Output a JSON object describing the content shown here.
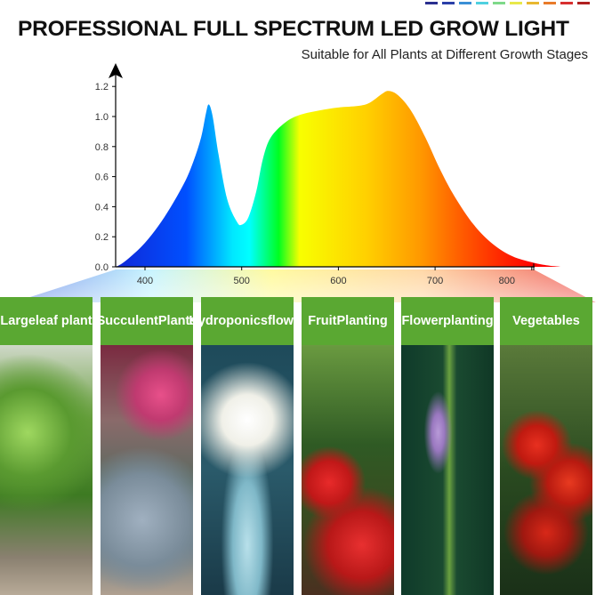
{
  "header": {
    "title": "PROFESSIONAL FULL SPECTRUM LED GROW LIGHT",
    "subtitle": "Suitable for All Plants at Different Growth Stages",
    "color_bars": [
      "#2a2f8f",
      "#2b3fa8",
      "#3a8fd6",
      "#4fd0e0",
      "#7ed98a",
      "#e8e84a",
      "#e8b830",
      "#e87b2a",
      "#d83030",
      "#b02020"
    ]
  },
  "chart_data": {
    "type": "area",
    "title": "",
    "xlabel": "",
    "ylabel": "",
    "xlim": [
      370,
      830
    ],
    "ylim": [
      0,
      1.25
    ],
    "x_ticks": [
      400,
      500,
      600,
      700,
      800
    ],
    "y_ticks": [
      "0.0",
      "0.2",
      "0.4",
      "0.6",
      "0.8",
      "1.0",
      "1.2"
    ],
    "grid": false,
    "fill": "spectrum gradient blue-cyan-green-yellow-orange-red",
    "x": [
      370,
      380,
      400,
      420,
      440,
      450,
      458,
      463,
      466,
      470,
      476,
      485,
      495,
      500,
      507,
      515,
      522,
      530,
      545,
      560,
      580,
      600,
      620,
      632,
      645,
      652,
      662,
      675,
      690,
      705,
      720,
      740,
      760,
      780,
      800,
      815,
      830
    ],
    "y": [
      0,
      0.04,
      0.16,
      0.33,
      0.55,
      0.7,
      0.86,
      1.02,
      1.08,
      1.0,
      0.75,
      0.45,
      0.3,
      0.28,
      0.33,
      0.5,
      0.72,
      0.86,
      0.96,
      1.01,
      1.04,
      1.06,
      1.07,
      1.09,
      1.15,
      1.17,
      1.14,
      1.04,
      0.86,
      0.65,
      0.47,
      0.28,
      0.15,
      0.07,
      0.03,
      0.01,
      0
    ]
  },
  "panels": [
    {
      "label": "Large leaf plant",
      "image": "leafy green seedlings in pebbles"
    },
    {
      "label": "Succulent Plants",
      "image": "succulents with pink flower"
    },
    {
      "label": "Hydroponics flower",
      "image": "white flowers in glass vase"
    },
    {
      "label": "Fruit Planting",
      "image": "strawberries on plant"
    },
    {
      "label": "Flower planting",
      "image": "purple flower stem"
    },
    {
      "label": "Vegetables",
      "image": "red tomatoes on vine"
    }
  ]
}
